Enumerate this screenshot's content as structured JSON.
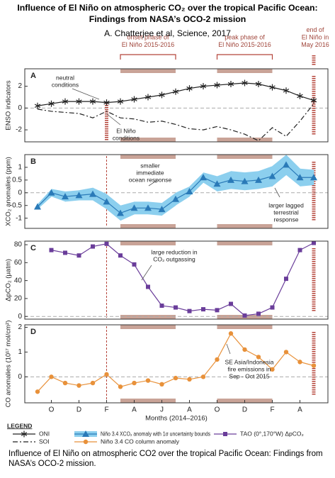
{
  "title": "Influence of El Niño on atmospheric CO₂ over the tropical Pacific Ocean: Findings from NASA’s OCO-2 mission",
  "subtitle": "A. Chatterjee et al, Science, 2017",
  "phases": [
    {
      "label": [
        "onset phase of",
        "El Niño 2015-2016"
      ]
    },
    {
      "label": [
        "peak phase of",
        "El Niño 2015-2016"
      ]
    },
    {
      "label": [
        "end of",
        "El Niño in",
        "May 2016"
      ]
    }
  ],
  "chart_data": [
    {
      "type": "line",
      "label": "A",
      "ylabel": "ENSO indicators",
      "ylim": [
        -3.1,
        3.6
      ],
      "yticks": [
        -2,
        0,
        2
      ],
      "series": [
        {
          "name": "ONI",
          "color": "#222222",
          "marker": "star",
          "values": [
            0.2,
            0.4,
            0.6,
            0.6,
            0.6,
            0.5,
            0.6,
            0.8,
            1.0,
            1.2,
            1.5,
            1.8,
            2.0,
            2.1,
            2.2,
            2.3,
            2.2,
            1.9,
            1.6,
            1.1,
            0.7
          ]
        },
        {
          "name": "SOI",
          "color": "#222222",
          "dash": "dashdot",
          "values": [
            -0.1,
            -0.3,
            -0.4,
            -0.5,
            -0.9,
            -0.3,
            -0.9,
            -1.0,
            -1.3,
            -1.2,
            -1.5,
            -1.9,
            -2.0,
            -1.7,
            -2.0,
            -2.4,
            -3.0,
            -1.8,
            -2.6,
            -1.2,
            0.4
          ]
        }
      ],
      "annotations": [
        {
          "lines": [
            "neutral",
            "conditions"
          ]
        },
        {
          "lines": [
            "El Niño",
            "conditions"
          ]
        }
      ]
    },
    {
      "type": "line",
      "label": "B",
      "ylabel": "XCO₂ anomalies (ppm)",
      "ylim": [
        -1.4,
        1.5
      ],
      "yticks": [
        -1,
        -0.5,
        0,
        0.5,
        1
      ],
      "series": [
        {
          "name": "Niño 3.4 XCO₂ anomaly with 1σ uncertainty bounds",
          "color": "#2a7ab8",
          "band_color": "#8ccfee",
          "marker": "triangle",
          "values": [
            -0.55,
            0.0,
            -0.15,
            -0.1,
            -0.05,
            -0.35,
            -0.8,
            -0.6,
            -0.6,
            -0.65,
            -0.25,
            0.05,
            0.6,
            0.35,
            0.5,
            0.45,
            0.5,
            0.65,
            1.1,
            0.6,
            0.6
          ],
          "errors": [
            0.1,
            0.15,
            0.2,
            0.2,
            0.25,
            0.3,
            0.3,
            0.25,
            0.25,
            0.25,
            0.25,
            0.2,
            0.2,
            0.3,
            0.35,
            0.35,
            0.35,
            0.4,
            0.4,
            0.35,
            0.3
          ]
        }
      ],
      "annotations": [
        {
          "lines": [
            "smaller",
            "immediate",
            "ocean response"
          ]
        },
        {
          "lines": [
            "larger lagged",
            "terrestrial",
            "response"
          ]
        }
      ]
    },
    {
      "type": "line",
      "label": "C",
      "ylabel": "ΔpCO₂ (μatm)",
      "ylim": [
        -3,
        84
      ],
      "yticks": [
        0,
        20,
        40,
        60,
        80
      ],
      "series": [
        {
          "name": "TAO (0°,170°W) ΔpCO₂",
          "color": "#6a3d9a",
          "marker": "square",
          "values": [
            null,
            74,
            71,
            68,
            78,
            81,
            68,
            58,
            33,
            12,
            10,
            6,
            8,
            7,
            14,
            1,
            3,
            10,
            42,
            74,
            82
          ]
        }
      ],
      "annotations": [
        {
          "lines": [
            "large reduction in",
            "CO₂ outgassing"
          ]
        }
      ]
    },
    {
      "type": "line",
      "label": "D",
      "ylabel": "CO anomalies (10¹⁷ mol/cm²)",
      "ylim": [
        -1.05,
        2.1
      ],
      "yticks": [
        0,
        1,
        2
      ],
      "xlabel": "Months (2014–2016)",
      "categories": [
        null,
        "O",
        null,
        "D",
        null,
        "F",
        null,
        "A",
        null,
        "J",
        null,
        "A",
        null,
        "O",
        null,
        "D",
        null,
        "F",
        null,
        "A",
        null
      ],
      "series": [
        {
          "name": "Niño 3.4 CO column anomaly",
          "color": "#e8913a",
          "marker": "circle",
          "values": [
            -0.6,
            0.0,
            -0.25,
            -0.35,
            -0.25,
            0.1,
            -0.4,
            -0.25,
            -0.15,
            -0.3,
            -0.05,
            -0.1,
            0.0,
            0.7,
            1.75,
            1.1,
            0.8,
            0.3,
            1.0,
            0.6,
            0.45
          ]
        }
      ],
      "annotations": [
        {
          "lines": [
            "SE Asia/Indonesia",
            "fire emissions in",
            "Sep - Oct 2015"
          ]
        }
      ]
    }
  ],
  "legend": {
    "title": "LEGEND"
  },
  "caption": "Influence of El Niño on atmospheric CO2 over the tropical Pacific Ocean: Findings from NASA’s OCO-2 mission."
}
